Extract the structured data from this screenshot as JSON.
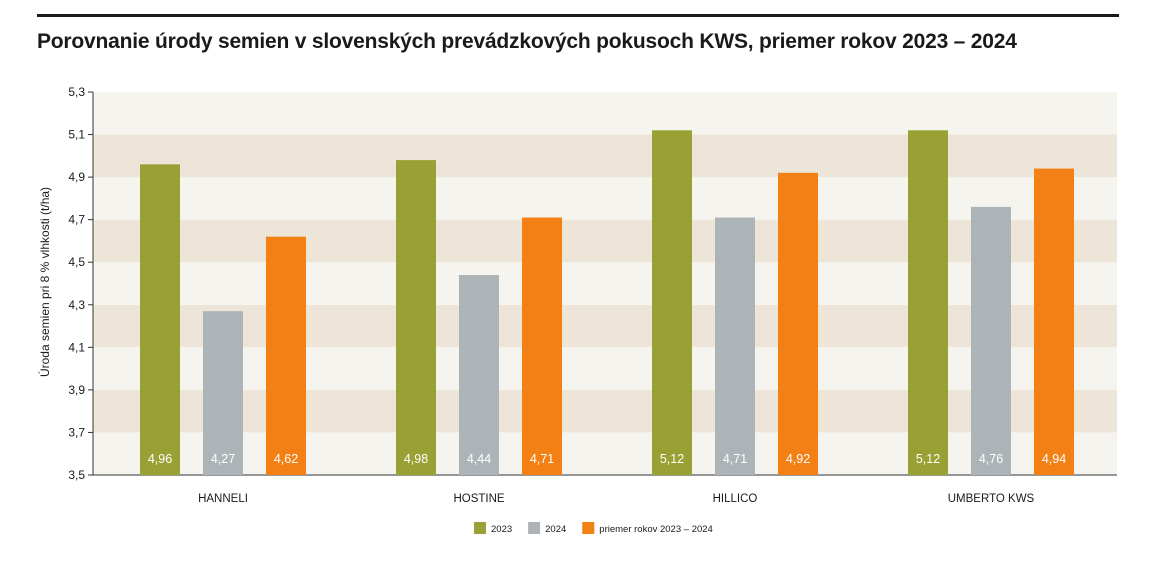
{
  "title": "Porovnanie úrody semien v slovenských prevádzkových pokusoch KWS, priemer rokov 2023 – 2024",
  "colors": {
    "series": [
      "#9aa134",
      "#adb4b8",
      "#f28014"
    ],
    "band_dark": "#ece5d8",
    "band_light": "#f6f4ef",
    "axis": "#333333"
  },
  "chart_data": {
    "type": "bar",
    "title": "Porovnanie úrody semien v slovenských prevádzkových pokusoch KWS, priemer rokov 2023 – 2024",
    "xlabel": "",
    "ylabel": "Úroda semien pri 8 % vlhkosti (t/ha)",
    "ylim": [
      3.5,
      5.3
    ],
    "yticks": [
      "3,5",
      "3,7",
      "3,9",
      "4,1",
      "4,3",
      "4,5",
      "4,7",
      "4,9",
      "5,1",
      "5,3"
    ],
    "categories": [
      "HANNELI",
      "HOSTINE",
      "HILLICO",
      "UMBERTO KWS"
    ],
    "series": [
      {
        "name": "2023",
        "values": [
          4.96,
          4.98,
          5.12,
          5.12
        ],
        "labels": [
          "4,96",
          "4,98",
          "5,12",
          "5,12"
        ]
      },
      {
        "name": "2024",
        "values": [
          4.27,
          4.44,
          4.71,
          4.76
        ],
        "labels": [
          "4,27",
          "4,44",
          "4,71",
          "4,76"
        ]
      },
      {
        "name": "priemer rokov 2023 – 2024",
        "values": [
          4.62,
          4.71,
          4.92,
          4.94
        ],
        "labels": [
          "4,62",
          "4,71",
          "4,92",
          "4,94"
        ]
      }
    ],
    "grid": "horizontal bands",
    "legend_position": "bottom-center"
  }
}
